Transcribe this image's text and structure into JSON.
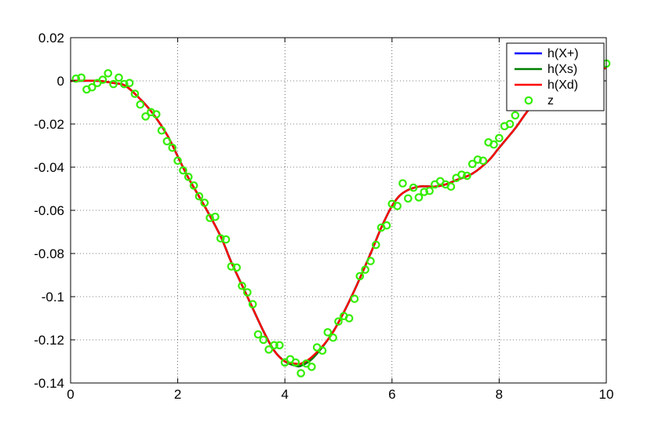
{
  "chart_data": {
    "type": "line",
    "title": "",
    "xlabel": "",
    "ylabel": "",
    "xlim": [
      0,
      10
    ],
    "ylim": [
      -0.14,
      0.02
    ],
    "grid": true,
    "legend_position": "top-right",
    "x_ticks": [
      0,
      2,
      4,
      6,
      8,
      10
    ],
    "x_tick_labels": [
      "0",
      "2",
      "4",
      "6",
      "8",
      "10"
    ],
    "y_ticks": [
      -0.14,
      -0.12,
      -0.1,
      -0.08,
      -0.06,
      -0.04,
      -0.02,
      0,
      0.02
    ],
    "y_tick_labels": [
      "-0.14",
      "-0.12",
      "-0.1",
      "-0.08",
      "-0.06",
      "-0.04",
      "-0.02",
      "0",
      "0.02"
    ],
    "x": [
      0,
      0.5,
      0.8,
      1.0,
      1.2,
      1.5,
      1.8,
      2.0,
      2.2,
      2.5,
      2.8,
      3.0,
      3.3,
      3.6,
      3.8,
      4.0,
      4.2,
      4.3,
      4.5,
      4.8,
      5.0,
      5.3,
      5.6,
      5.8,
      6.0,
      6.2,
      6.5,
      6.8,
      7.0,
      7.2,
      7.5,
      7.8,
      8.0,
      8.3,
      8.6,
      9.0,
      9.5,
      10.0
    ],
    "series": [
      {
        "name": "h(X+)",
        "color": "#0000ff",
        "style": "line",
        "values": [
          0.0,
          0.0,
          -0.001,
          -0.002,
          -0.006,
          -0.014,
          -0.025,
          -0.035,
          -0.045,
          -0.058,
          -0.072,
          -0.084,
          -0.1,
          -0.116,
          -0.125,
          -0.13,
          -0.132,
          -0.132,
          -0.129,
          -0.12,
          -0.112,
          -0.097,
          -0.08,
          -0.068,
          -0.058,
          -0.052,
          -0.049,
          -0.049,
          -0.048,
          -0.046,
          -0.043,
          -0.037,
          -0.031,
          -0.022,
          -0.012,
          -0.004,
          0.002,
          0.006
        ]
      },
      {
        "name": "h(Xs)",
        "color": "#007f00",
        "style": "line",
        "values": [
          0.0,
          0.0,
          -0.001,
          -0.002,
          -0.006,
          -0.014,
          -0.025,
          -0.035,
          -0.045,
          -0.058,
          -0.072,
          -0.084,
          -0.1,
          -0.116,
          -0.125,
          -0.13,
          -0.132,
          -0.132,
          -0.129,
          -0.12,
          -0.112,
          -0.097,
          -0.08,
          -0.068,
          -0.058,
          -0.052,
          -0.049,
          -0.049,
          -0.048,
          -0.046,
          -0.043,
          -0.037,
          -0.031,
          -0.022,
          -0.012,
          -0.004,
          0.002,
          0.006
        ]
      },
      {
        "name": "h(Xd)",
        "color": "#ff0000",
        "style": "line",
        "values": [
          0.0,
          0.0,
          -0.001,
          -0.002,
          -0.006,
          -0.014,
          -0.025,
          -0.035,
          -0.045,
          -0.058,
          -0.072,
          -0.084,
          -0.1,
          -0.116,
          -0.125,
          -0.13,
          -0.131,
          -0.131,
          -0.128,
          -0.12,
          -0.112,
          -0.097,
          -0.08,
          -0.068,
          -0.058,
          -0.052,
          -0.049,
          -0.049,
          -0.048,
          -0.046,
          -0.043,
          -0.037,
          -0.031,
          -0.022,
          -0.012,
          -0.004,
          0.002,
          0.006
        ]
      }
    ],
    "scatter": {
      "name": "z",
      "color": "#33ee00",
      "marker": "circle",
      "x": [
        0.1,
        0.2,
        0.3,
        0.4,
        0.5,
        0.6,
        0.7,
        0.8,
        0.9,
        1.0,
        1.1,
        1.2,
        1.3,
        1.4,
        1.5,
        1.6,
        1.7,
        1.8,
        1.9,
        2.0,
        2.1,
        2.2,
        2.3,
        2.4,
        2.5,
        2.6,
        2.7,
        2.8,
        2.9,
        3.0,
        3.1,
        3.2,
        3.3,
        3.4,
        3.5,
        3.6,
        3.7,
        3.8,
        3.9,
        4.0,
        4.1,
        4.2,
        4.3,
        4.4,
        4.5,
        4.6,
        4.7,
        4.8,
        4.9,
        5.0,
        5.1,
        5.2,
        5.3,
        5.4,
        5.5,
        5.6,
        5.7,
        5.8,
        5.9,
        6.0,
        6.1,
        6.2,
        6.3,
        6.4,
        6.5,
        6.6,
        6.7,
        6.8,
        6.9,
        7.0,
        7.1,
        7.2,
        7.3,
        7.4,
        7.5,
        7.6,
        7.7,
        7.8,
        7.9,
        8.0,
        8.1,
        8.2,
        8.3,
        8.4,
        8.5,
        8.6,
        8.7,
        8.8,
        8.9,
        9.0,
        9.1,
        9.2,
        9.3,
        9.4,
        9.5,
        9.6,
        9.7,
        9.8,
        9.9,
        10.0
      ],
      "y": [
        0.001,
        0.0015,
        -0.004,
        -0.003,
        -0.001,
        0.0005,
        0.0035,
        -0.0015,
        0.0015,
        -0.0015,
        -0.001,
        -0.006,
        -0.011,
        -0.0165,
        -0.0145,
        -0.0155,
        -0.023,
        -0.028,
        -0.031,
        -0.037,
        -0.0415,
        -0.0445,
        -0.0485,
        -0.0535,
        -0.0565,
        -0.0635,
        -0.063,
        -0.073,
        -0.0735,
        -0.086,
        -0.0865,
        -0.095,
        -0.098,
        -0.1035,
        -0.1175,
        -0.12,
        -0.1245,
        -0.1225,
        -0.1225,
        -0.1305,
        -0.129,
        -0.1305,
        -0.1355,
        -0.131,
        -0.1325,
        -0.1235,
        -0.125,
        -0.1165,
        -0.119,
        -0.1115,
        -0.109,
        -0.11,
        -0.101,
        -0.0905,
        -0.0875,
        -0.0835,
        -0.076,
        -0.068,
        -0.067,
        -0.057,
        -0.058,
        -0.0475,
        -0.0545,
        -0.0495,
        -0.054,
        -0.0515,
        -0.051,
        -0.048,
        -0.0465,
        -0.048,
        -0.049,
        -0.045,
        -0.0435,
        -0.044,
        -0.0385,
        -0.0365,
        -0.037,
        -0.0285,
        -0.0295,
        -0.0265,
        -0.021,
        -0.02,
        -0.016,
        -0.01,
        -0.011,
        -0.004,
        -0.007,
        -0.001,
        0.002,
        0.001,
        0.004,
        0.003,
        0.006,
        0.005,
        0.007,
        0.006,
        0.008,
        0.006,
        0.008,
        0.008
      ]
    }
  }
}
